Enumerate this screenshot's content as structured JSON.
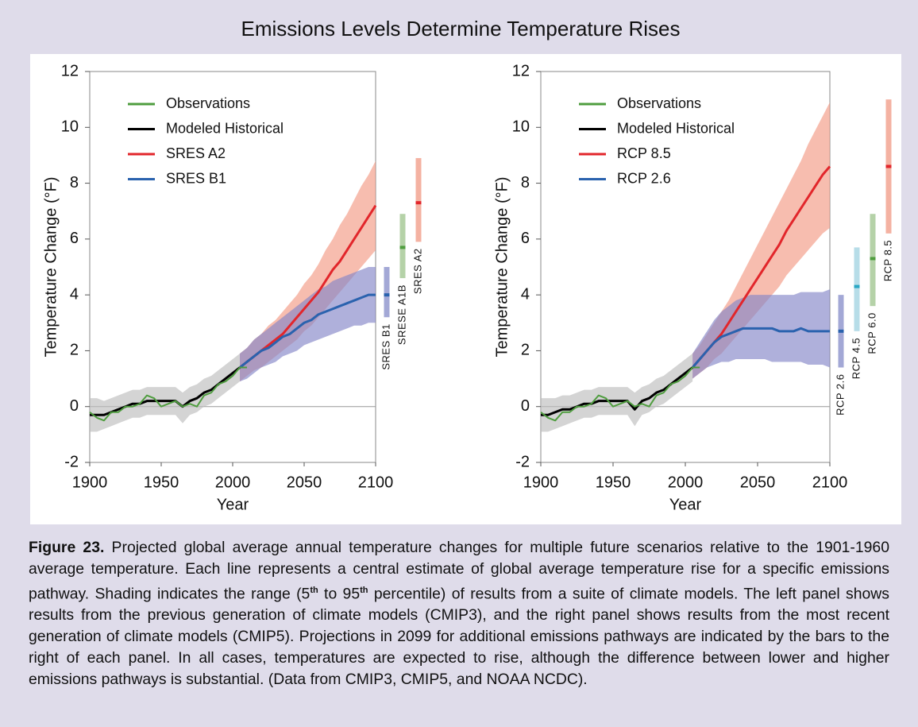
{
  "title": "Emissions Levels Determine Temperature Rises",
  "chart_data": [
    {
      "type": "line",
      "xlabel": "Year",
      "ylabel": "Temperature Change (°F)",
      "xlim": [
        1900,
        2100
      ],
      "ylim": [
        -2,
        12
      ],
      "xticks": [
        1900,
        1950,
        2000,
        2050,
        2100
      ],
      "yticks": [
        -2,
        0,
        2,
        4,
        6,
        8,
        10,
        12
      ],
      "series": [
        {
          "name": "Observations",
          "color": "#4f9d3f",
          "x": [
            1900,
            1905,
            1910,
            1915,
            1920,
            1925,
            1930,
            1935,
            1940,
            1945,
            1950,
            1955,
            1960,
            1965,
            1970,
            1975,
            1980,
            1985,
            1990,
            1995,
            2000,
            2005,
            2010
          ],
          "values": [
            -0.2,
            -0.4,
            -0.5,
            -0.2,
            -0.2,
            0.0,
            0.0,
            0.1,
            0.4,
            0.3,
            0.0,
            0.1,
            0.2,
            0.0,
            0.1,
            0.0,
            0.4,
            0.5,
            0.8,
            0.9,
            1.1,
            1.4,
            1.4
          ]
        },
        {
          "name": "Modeled Historical",
          "color": "#000000",
          "band_color": "#bdbdbd",
          "x": [
            1900,
            1905,
            1910,
            1915,
            1920,
            1925,
            1930,
            1935,
            1940,
            1945,
            1950,
            1955,
            1960,
            1965,
            1970,
            1975,
            1980,
            1985,
            1990,
            1995,
            2000,
            2005
          ],
          "values": [
            -0.3,
            -0.3,
            -0.3,
            -0.2,
            -0.1,
            0.0,
            0.1,
            0.1,
            0.2,
            0.2,
            0.2,
            0.2,
            0.2,
            0.0,
            0.2,
            0.3,
            0.5,
            0.6,
            0.8,
            1.0,
            1.2,
            1.4
          ],
          "lower": [
            -0.9,
            -0.9,
            -0.8,
            -0.7,
            -0.6,
            -0.5,
            -0.4,
            -0.4,
            -0.3,
            -0.3,
            -0.3,
            -0.3,
            -0.3,
            -0.6,
            -0.3,
            -0.2,
            0.0,
            0.1,
            0.3,
            0.5,
            0.7,
            0.9
          ],
          "upper": [
            0.3,
            0.3,
            0.2,
            0.3,
            0.4,
            0.5,
            0.6,
            0.6,
            0.7,
            0.7,
            0.7,
            0.7,
            0.7,
            0.5,
            0.7,
            0.8,
            1.0,
            1.1,
            1.3,
            1.5,
            1.7,
            1.9
          ]
        },
        {
          "name": "SRES A2",
          "color": "#e2262b",
          "band_color": "#f29a84",
          "x": [
            2005,
            2010,
            2015,
            2020,
            2025,
            2030,
            2035,
            2040,
            2045,
            2050,
            2055,
            2060,
            2065,
            2070,
            2075,
            2080,
            2085,
            2090,
            2095,
            2100
          ],
          "values": [
            1.4,
            1.6,
            1.8,
            2.0,
            2.2,
            2.4,
            2.6,
            2.9,
            3.2,
            3.5,
            3.8,
            4.1,
            4.5,
            4.9,
            5.2,
            5.6,
            6.0,
            6.4,
            6.8,
            7.2
          ],
          "lower": [
            0.9,
            1.1,
            1.3,
            1.4,
            1.6,
            1.8,
            2.0,
            2.2,
            2.4,
            2.7,
            2.9,
            3.2,
            3.5,
            3.8,
            4.1,
            4.4,
            4.7,
            5.0,
            5.3,
            5.6
          ],
          "upper": [
            1.9,
            2.1,
            2.4,
            2.6,
            2.9,
            3.1,
            3.4,
            3.7,
            4.0,
            4.4,
            4.7,
            5.1,
            5.6,
            6.0,
            6.5,
            6.9,
            7.4,
            7.9,
            8.3,
            8.8
          ]
        },
        {
          "name": "SRES B1",
          "color": "#2a62ae",
          "band_color": "#8486c8",
          "x": [
            2005,
            2010,
            2015,
            2020,
            2025,
            2030,
            2035,
            2040,
            2045,
            2050,
            2055,
            2060,
            2065,
            2070,
            2075,
            2080,
            2085,
            2090,
            2095,
            2100
          ],
          "values": [
            1.4,
            1.6,
            1.8,
            2.0,
            2.1,
            2.3,
            2.5,
            2.6,
            2.8,
            3.0,
            3.1,
            3.3,
            3.4,
            3.5,
            3.6,
            3.7,
            3.8,
            3.9,
            4.0,
            4.0
          ],
          "lower": [
            0.9,
            1.0,
            1.2,
            1.4,
            1.5,
            1.6,
            1.8,
            1.9,
            2.0,
            2.2,
            2.3,
            2.4,
            2.5,
            2.6,
            2.7,
            2.8,
            2.9,
            2.9,
            3.0,
            3.0
          ],
          "upper": [
            1.9,
            2.1,
            2.4,
            2.6,
            2.8,
            3.0,
            3.2,
            3.4,
            3.6,
            3.8,
            4.0,
            4.2,
            4.3,
            4.5,
            4.6,
            4.7,
            4.8,
            4.9,
            5.0,
            5.0
          ]
        }
      ],
      "legend": [
        0,
        1,
        2,
        3
      ],
      "bars": [
        {
          "name": "SRES B1",
          "value": 4.0,
          "low": 3.2,
          "high": 5.0,
          "color": "#a3a8d6",
          "mid_color": "#2a62ae"
        },
        {
          "name": "SRESE A1B",
          "value": 5.7,
          "low": 4.6,
          "high": 6.9,
          "color": "#b5d2a8",
          "mid_color": "#4f9d3f"
        },
        {
          "name": "SRES A2",
          "value": 7.3,
          "low": 5.9,
          "high": 8.9,
          "color": "#f4b2a2",
          "mid_color": "#e2262b"
        }
      ]
    },
    {
      "type": "line",
      "xlabel": "Year",
      "ylabel": "Temperature Change (°F)",
      "xlim": [
        1900,
        2100
      ],
      "ylim": [
        -2,
        12
      ],
      "xticks": [
        1900,
        1950,
        2000,
        2050,
        2100
      ],
      "yticks": [
        -2,
        0,
        2,
        4,
        6,
        8,
        10,
        12
      ],
      "series": [
        {
          "name": "Observations",
          "color": "#4f9d3f",
          "x": [
            1900,
            1905,
            1910,
            1915,
            1920,
            1925,
            1930,
            1935,
            1940,
            1945,
            1950,
            1955,
            1960,
            1965,
            1970,
            1975,
            1980,
            1985,
            1990,
            1995,
            2000,
            2005,
            2010
          ],
          "values": [
            -0.2,
            -0.4,
            -0.5,
            -0.2,
            -0.2,
            0.0,
            0.0,
            0.1,
            0.4,
            0.3,
            0.0,
            0.1,
            0.2,
            0.0,
            0.1,
            0.0,
            0.4,
            0.5,
            0.8,
            0.9,
            1.1,
            1.4,
            1.4
          ]
        },
        {
          "name": "Modeled Historical",
          "color": "#000000",
          "band_color": "#bdbdbd",
          "x": [
            1900,
            1905,
            1910,
            1915,
            1920,
            1925,
            1930,
            1935,
            1940,
            1945,
            1950,
            1955,
            1960,
            1965,
            1970,
            1975,
            1980,
            1985,
            1990,
            1995,
            2000,
            2005
          ],
          "values": [
            -0.3,
            -0.3,
            -0.2,
            -0.1,
            -0.1,
            0.0,
            0.1,
            0.1,
            0.2,
            0.2,
            0.2,
            0.2,
            0.2,
            -0.1,
            0.2,
            0.3,
            0.5,
            0.6,
            0.8,
            1.0,
            1.2,
            1.4
          ],
          "lower": [
            -0.9,
            -0.9,
            -0.8,
            -0.7,
            -0.6,
            -0.5,
            -0.4,
            -0.4,
            -0.3,
            -0.3,
            -0.3,
            -0.3,
            -0.3,
            -0.7,
            -0.3,
            -0.2,
            0.0,
            0.1,
            0.3,
            0.5,
            0.7,
            0.9
          ],
          "upper": [
            0.3,
            0.3,
            0.3,
            0.4,
            0.4,
            0.5,
            0.6,
            0.6,
            0.7,
            0.7,
            0.7,
            0.7,
            0.7,
            0.5,
            0.7,
            0.8,
            1.0,
            1.1,
            1.3,
            1.5,
            1.7,
            1.9
          ]
        },
        {
          "name": "RCP 8.5",
          "color": "#e2262b",
          "band_color": "#f29a84",
          "x": [
            2005,
            2010,
            2015,
            2020,
            2025,
            2030,
            2035,
            2040,
            2045,
            2050,
            2055,
            2060,
            2065,
            2070,
            2075,
            2080,
            2085,
            2090,
            2095,
            2100
          ],
          "values": [
            1.4,
            1.7,
            2.0,
            2.3,
            2.6,
            3.0,
            3.4,
            3.8,
            4.2,
            4.6,
            5.0,
            5.4,
            5.8,
            6.3,
            6.7,
            7.1,
            7.5,
            7.9,
            8.3,
            8.6
          ],
          "lower": [
            1.0,
            1.2,
            1.4,
            1.7,
            1.9,
            2.2,
            2.5,
            2.8,
            3.1,
            3.4,
            3.7,
            4.0,
            4.3,
            4.7,
            5.0,
            5.3,
            5.6,
            5.9,
            6.2,
            6.4
          ],
          "upper": [
            1.9,
            2.2,
            2.6,
            3.0,
            3.4,
            3.8,
            4.3,
            4.8,
            5.3,
            5.8,
            6.3,
            6.8,
            7.3,
            7.8,
            8.3,
            8.8,
            9.4,
            9.9,
            10.4,
            10.9
          ]
        },
        {
          "name": "RCP 2.6",
          "color": "#2a62ae",
          "band_color": "#8486c8",
          "x": [
            2005,
            2010,
            2015,
            2020,
            2025,
            2030,
            2035,
            2040,
            2045,
            2050,
            2055,
            2060,
            2065,
            2070,
            2075,
            2080,
            2085,
            2090,
            2095,
            2100
          ],
          "values": [
            1.4,
            1.7,
            2.0,
            2.3,
            2.5,
            2.6,
            2.7,
            2.8,
            2.8,
            2.8,
            2.8,
            2.8,
            2.7,
            2.7,
            2.7,
            2.8,
            2.7,
            2.7,
            2.7,
            2.7
          ],
          "lower": [
            1.0,
            1.2,
            1.4,
            1.5,
            1.6,
            1.6,
            1.7,
            1.7,
            1.7,
            1.7,
            1.7,
            1.6,
            1.6,
            1.6,
            1.6,
            1.6,
            1.5,
            1.5,
            1.5,
            1.4
          ],
          "upper": [
            1.9,
            2.3,
            2.7,
            3.1,
            3.4,
            3.6,
            3.8,
            3.9,
            4.0,
            4.0,
            4.0,
            4.0,
            4.0,
            4.0,
            4.0,
            4.1,
            4.1,
            4.1,
            4.1,
            4.2
          ]
        }
      ],
      "legend": [
        0,
        1,
        2,
        3
      ],
      "bars": [
        {
          "name": "RCP 2.6",
          "value": 2.7,
          "low": 1.4,
          "high": 4.0,
          "color": "#a3a8d6",
          "mid_color": "#2a62ae"
        },
        {
          "name": "RCP 4.5",
          "value": 4.3,
          "low": 2.7,
          "high": 5.7,
          "color": "#b7dde8",
          "mid_color": "#2aa7c4"
        },
        {
          "name": "RCP 6.0",
          "value": 5.3,
          "low": 3.6,
          "high": 6.9,
          "color": "#b5d2a8",
          "mid_color": "#4f9d3f"
        },
        {
          "name": "RCP 8.5",
          "value": 8.6,
          "low": 6.2,
          "high": 11.0,
          "color": "#f4b2a2",
          "mid_color": "#e2262b"
        }
      ]
    }
  ],
  "caption": {
    "label": "Figure 23.",
    "parts": [
      " Projected global average annual temperature changes for multiple future scenarios relative to the 1901-1960 average temperature. Each line represents a central estimate of global average temperature rise for a specific emissions pathway. Shading indicates the range (5",
      "th",
      " to 95",
      "th",
      " percentile) of results from a suite of climate models. The left panel shows results from the previous generation of climate models (CMIP3), and the right panel shows results from the most recent generation of climate models (CMIP5). Projections in 2099 for additional emissions pathways are indicated by the bars to the right of each panel. In all cases, temperatures are expected to rise, although the difference between lower and higher emissions pathways is substantial. (Data from CMIP3, CMIP5, and NOAA NCDC)."
    ]
  }
}
